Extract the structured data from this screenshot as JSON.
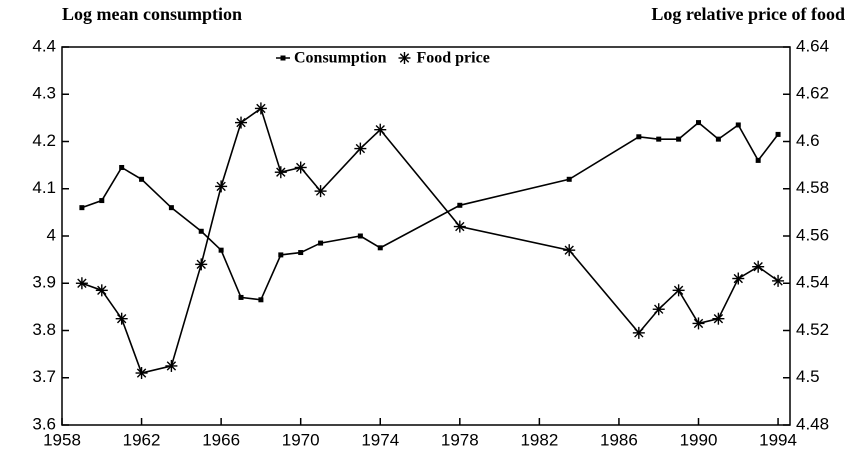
{
  "chart_data": {
    "type": "line",
    "y_label": "Log mean consumption",
    "y2_label": "Log relative price of food",
    "x": [
      1959,
      1960,
      1961,
      1962,
      1963.5,
      1965,
      1966,
      1967,
      1968,
      1969,
      1970,
      1971,
      1973,
      1974,
      1978,
      1983.5,
      1987,
      1988,
      1989,
      1990,
      1991,
      1992,
      1993,
      1994
    ],
    "series": [
      {
        "name": "Consumption",
        "color": "#000000",
        "marker": "square",
        "axis": "y",
        "values": [
          4.06,
          4.075,
          4.145,
          4.12,
          4.06,
          4.01,
          3.97,
          3.87,
          3.865,
          3.96,
          3.965,
          3.985,
          4.0,
          3.975,
          4.065,
          4.12,
          4.21,
          4.205,
          4.205,
          4.24,
          4.205,
          4.235,
          4.16,
          4.215
        ]
      },
      {
        "name": "Food price",
        "color": "#000000",
        "marker": "asterisk",
        "axis": "y2",
        "values": [
          4.54,
          4.537,
          4.525,
          4.502,
          4.505,
          4.548,
          4.581,
          4.608,
          4.614,
          4.587,
          4.589,
          4.579,
          4.597,
          4.605,
          4.564,
          4.554,
          4.519,
          4.529,
          4.537,
          4.523,
          4.525,
          4.542,
          4.547,
          4.541
        ]
      }
    ],
    "xlim": [
      1958,
      1994.6
    ],
    "xticks": [
      1958,
      1962,
      1966,
      1970,
      1974,
      1978,
      1982,
      1986,
      1990,
      1994
    ],
    "ylim": [
      3.6,
      4.4
    ],
    "yticks": [
      3.6,
      3.7,
      3.8,
      3.9,
      4,
      4.1,
      4.2,
      4.3,
      4.4
    ],
    "y2lim": [
      4.48,
      4.64
    ],
    "y2ticks": [
      4.48,
      4.5,
      4.52,
      4.54,
      4.56,
      4.58,
      4.6,
      4.62,
      4.64
    ],
    "legend": "top"
  }
}
